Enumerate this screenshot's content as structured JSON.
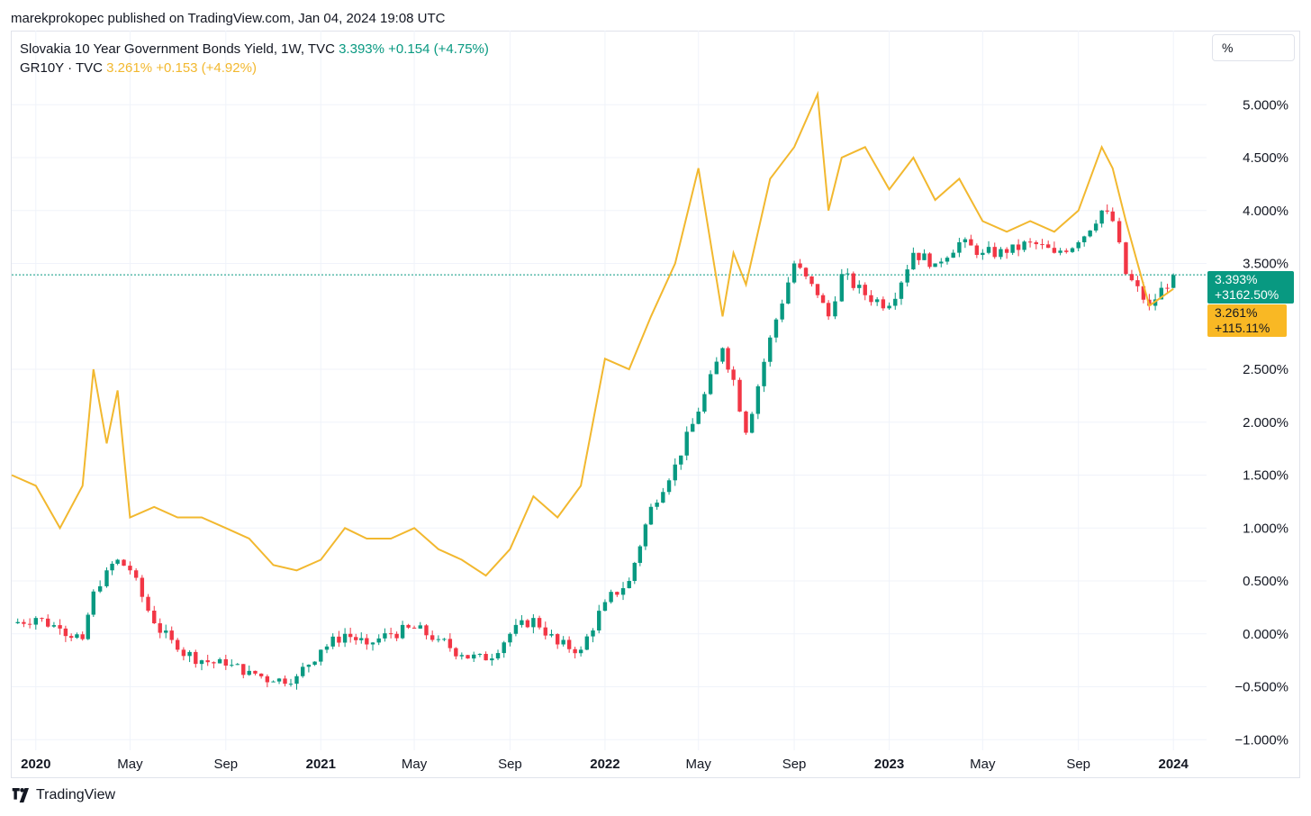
{
  "header": {
    "published": "marekprokopec published on TradingView.com, Jan 04, 2024 19:08 UTC"
  },
  "legend": {
    "series1": {
      "name": "Slovakia 10 Year Government Bonds Yield, 1W, TVC",
      "value": "3.393%",
      "change": "+0.154 (+4.75%)",
      "color": "#089981"
    },
    "series2": {
      "name": "GR10Y · TVC",
      "value": "3.261%",
      "change": "+0.153 (+4.92%)",
      "color": "#f2b82f"
    }
  },
  "scale_button": "%",
  "badges": {
    "green_value": "3.393%",
    "green_change": "+3162.50%",
    "yellow_value": "3.261%",
    "yellow_change": "+115.11%"
  },
  "footer": {
    "brand": "TradingView"
  },
  "chart_data": [
    {
      "type": "candlestick",
      "name": "Slovakia 10 Year Government Bonds Yield, 1W, TVC",
      "color_up": "#089981",
      "color_down": "#f23645",
      "x": [
        "2019-12",
        "2020-01",
        "2020-02",
        "2020-03",
        "2020-03-15",
        "2020-04",
        "2020-04-15",
        "2020-05",
        "2020-06",
        "2020-07",
        "2020-08",
        "2020-09",
        "2020-10",
        "2020-11",
        "2020-12",
        "2021-01",
        "2021-02",
        "2021-03",
        "2021-04",
        "2021-05",
        "2021-06",
        "2021-07",
        "2021-08",
        "2021-09",
        "2021-10",
        "2021-11",
        "2021-12",
        "2022-01",
        "2022-02",
        "2022-03",
        "2022-04",
        "2022-05",
        "2022-06",
        "2022-06-15",
        "2022-07",
        "2022-08",
        "2022-09",
        "2022-10",
        "2022-10-15",
        "2022-11",
        "2022-12",
        "2023-01",
        "2023-02",
        "2023-03",
        "2023-04",
        "2023-05",
        "2023-06",
        "2023-07",
        "2023-08",
        "2023-09",
        "2023-10",
        "2023-10-15",
        "2023-11",
        "2023-12",
        "2024-01"
      ],
      "close": [
        0.1,
        0.15,
        0.05,
        -0.05,
        0.4,
        0.6,
        0.7,
        0.6,
        0.1,
        -0.15,
        -0.25,
        -0.3,
        -0.35,
        -0.45,
        -0.4,
        -0.15,
        0.0,
        -0.1,
        0.0,
        0.05,
        -0.05,
        -0.2,
        -0.25,
        0.0,
        0.15,
        -0.1,
        -0.15,
        0.3,
        0.5,
        1.2,
        1.6,
        2.1,
        2.7,
        2.4,
        1.9,
        2.8,
        3.5,
        3.2,
        3.0,
        3.4,
        3.2,
        3.1,
        3.6,
        3.5,
        3.7,
        3.6,
        3.6,
        3.7,
        3.6,
        3.7,
        4.0,
        3.9,
        3.4,
        3.1,
        3.39
      ],
      "xlim": [
        "2019-12",
        "2024-02"
      ],
      "ylim": [
        -1.1,
        5.7
      ],
      "last_value": 3.393
    },
    {
      "type": "line",
      "name": "GR10Y · TVC",
      "color": "#f2b82f",
      "x": [
        "2019-12",
        "2020-01",
        "2020-02",
        "2020-03",
        "2020-03-15",
        "2020-04",
        "2020-04-15",
        "2020-05",
        "2020-06",
        "2020-07",
        "2020-08",
        "2020-09",
        "2020-10",
        "2020-11",
        "2020-12",
        "2021-01",
        "2021-02",
        "2021-03",
        "2021-04",
        "2021-05",
        "2021-06",
        "2021-07",
        "2021-08",
        "2021-09",
        "2021-10",
        "2021-11",
        "2021-12",
        "2022-01",
        "2022-02",
        "2022-03",
        "2022-04",
        "2022-05",
        "2022-06",
        "2022-06-15",
        "2022-07",
        "2022-08",
        "2022-09",
        "2022-10",
        "2022-10-15",
        "2022-11",
        "2022-12",
        "2023-01",
        "2023-02",
        "2023-03",
        "2023-04",
        "2023-05",
        "2023-06",
        "2023-07",
        "2023-08",
        "2023-09",
        "2023-10",
        "2023-10-15",
        "2023-11",
        "2023-12",
        "2024-01"
      ],
      "values": [
        1.5,
        1.4,
        1.0,
        1.4,
        2.5,
        1.8,
        2.3,
        1.1,
        1.2,
        1.1,
        1.1,
        1.0,
        0.9,
        0.65,
        0.6,
        0.7,
        1.0,
        0.9,
        0.9,
        1.0,
        0.8,
        0.7,
        0.55,
        0.8,
        1.3,
        1.1,
        1.4,
        2.6,
        2.5,
        3.0,
        3.5,
        4.4,
        3.0,
        3.6,
        3.3,
        4.3,
        4.6,
        5.1,
        4.0,
        4.5,
        4.6,
        4.2,
        4.5,
        4.1,
        4.3,
        3.9,
        3.8,
        3.9,
        3.8,
        4.0,
        4.6,
        4.4,
        3.9,
        3.1,
        3.26
      ],
      "last_value": 3.261
    }
  ],
  "axes": {
    "y_ticks": [
      "5.000%",
      "4.500%",
      "4.000%",
      "3.500%",
      "2.500%",
      "2.000%",
      "1.500%",
      "1.000%",
      "0.500%",
      "0.000%",
      "−0.500%",
      "−1.000%"
    ],
    "y_tick_values": [
      5.0,
      4.5,
      4.0,
      3.5,
      2.5,
      2.0,
      1.5,
      1.0,
      0.5,
      0.0,
      -0.5,
      -1.0
    ],
    "x_ticks": [
      "2020",
      "May",
      "Sep",
      "2021",
      "May",
      "Sep",
      "2022",
      "May",
      "Sep",
      "2023",
      "May",
      "Sep",
      "2024"
    ],
    "x_tick_dates": [
      "2020-01",
      "2020-05",
      "2020-09",
      "2021-01",
      "2021-05",
      "2021-09",
      "2022-01",
      "2022-05",
      "2022-09",
      "2023-01",
      "2023-05",
      "2023-09",
      "2024-01"
    ],
    "x_tick_is_year": [
      true,
      false,
      false,
      true,
      false,
      false,
      true,
      false,
      false,
      true,
      false,
      false,
      true
    ],
    "grid": true
  }
}
